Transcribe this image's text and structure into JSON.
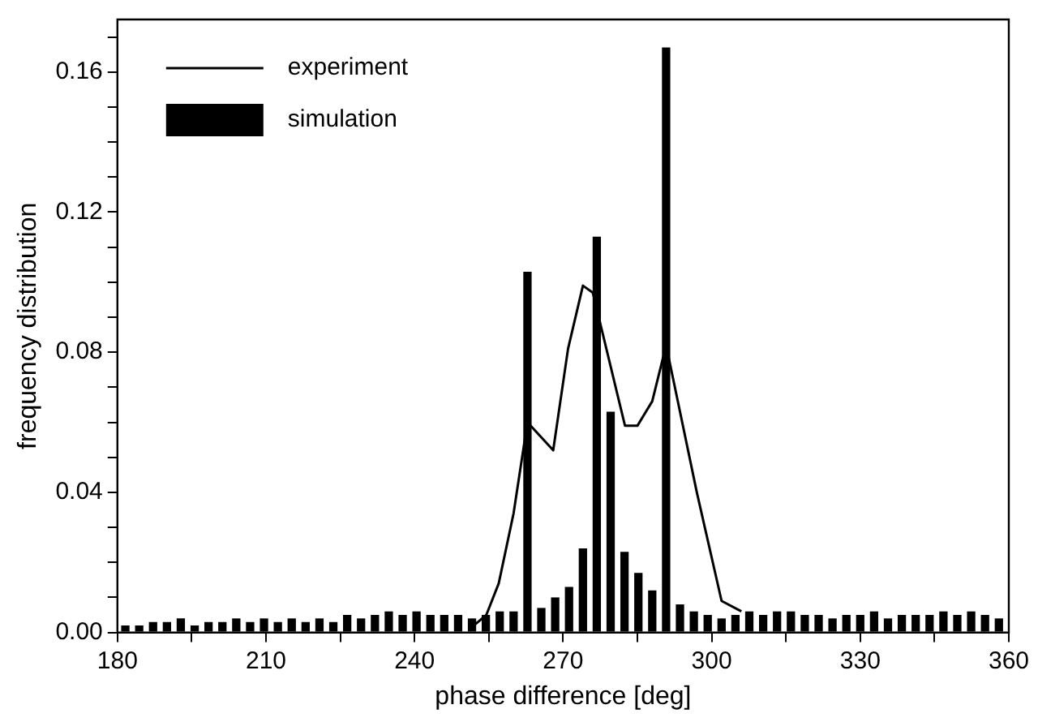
{
  "chart_data": {
    "type": "bar",
    "xlabel": "phase difference [deg]",
    "ylabel": "frequency distribution",
    "xlim": [
      180,
      360
    ],
    "xticks": [
      180,
      {
        "value": 195,
        "label": null
      },
      210,
      {
        "value": 225,
        "label": null
      },
      240,
      {
        "value": 255,
        "label": null
      },
      270,
      {
        "value": 285,
        "label": null
      },
      300,
      {
        "value": 315,
        "label": null
      },
      330,
      {
        "value": 345,
        "label": null
      },
      360
    ],
    "ylim": [
      0,
      0.175
    ],
    "yticks": [
      {
        "value": 0,
        "label": "0.00"
      },
      {
        "value": 0.01,
        "label": null
      },
      {
        "value": 0.02,
        "label": null
      },
      {
        "value": 0.03,
        "label": null
      },
      {
        "value": 0.04,
        "label": "0.04"
      },
      {
        "value": 0.05,
        "label": null
      },
      {
        "value": 0.06,
        "label": null
      },
      {
        "value": 0.07,
        "label": null
      },
      {
        "value": 0.08,
        "label": "0.08"
      },
      {
        "value": 0.09,
        "label": null
      },
      {
        "value": 0.1,
        "label": null
      },
      {
        "value": 0.11,
        "label": null
      },
      {
        "value": 0.12,
        "label": "0.12"
      },
      {
        "value": 0.13,
        "label": null
      },
      {
        "value": 0.14,
        "label": null
      },
      {
        "value": 0.15,
        "label": null
      },
      {
        "value": 0.16,
        "label": "0.16"
      },
      {
        "value": 0.17,
        "label": null
      }
    ],
    "grid": false,
    "legend": "top left",
    "series": [
      {
        "name": "experiment",
        "type": "line",
        "color": "#000000",
        "x": [
          252,
          254.5,
          257,
          260,
          262.8,
          268,
          271,
          274,
          276,
          282.5,
          285,
          288,
          290.8,
          297,
          302,
          306
        ],
        "values": [
          0.002,
          0.005,
          0.014,
          0.034,
          0.06,
          0.052,
          0.081,
          0.099,
          0.097,
          0.059,
          0.059,
          0.066,
          0.082,
          0.04,
          0.009,
          0.006
        ]
      },
      {
        "name": "simulation",
        "color": "#000000",
        "x": [
          181.6,
          184.4,
          187.2,
          190,
          192.8,
          195.6,
          198.4,
          201.2,
          204,
          206.8,
          209.6,
          212.4,
          215.2,
          218,
          220.8,
          223.6,
          226.4,
          229.2,
          232,
          234.8,
          237.6,
          240.4,
          243.2,
          246,
          248.8,
          251.6,
          254.4,
          257.2,
          260,
          262.8,
          265.6,
          268.4,
          271.2,
          274,
          276.8,
          279.6,
          282.4,
          285.2,
          288,
          290.8,
          293.6,
          296.4,
          299.2,
          302,
          304.8,
          307.6,
          310.4,
          313.2,
          316,
          318.8,
          321.6,
          324.4,
          327.2,
          330,
          332.8,
          335.6,
          338.4,
          341.2,
          344,
          346.8,
          349.6,
          352.4,
          355.2,
          358
        ],
        "values": [
          0.002,
          0.002,
          0.003,
          0.003,
          0.004,
          0.002,
          0.003,
          0.003,
          0.004,
          0.003,
          0.004,
          0.003,
          0.004,
          0.003,
          0.004,
          0.003,
          0.005,
          0.004,
          0.005,
          0.006,
          0.005,
          0.006,
          0.005,
          0.005,
          0.005,
          0.004,
          0.005,
          0.006,
          0.006,
          0.103,
          0.007,
          0.01,
          0.013,
          0.024,
          0.113,
          0.063,
          0.023,
          0.017,
          0.012,
          0.167,
          0.008,
          0.006,
          0.005,
          0.004,
          0.005,
          0.006,
          0.005,
          0.006,
          0.006,
          0.005,
          0.005,
          0.004,
          0.005,
          0.005,
          0.006,
          0.004,
          0.005,
          0.005,
          0.005,
          0.006,
          0.005,
          0.006,
          0.005,
          0.004
        ]
      }
    ]
  }
}
